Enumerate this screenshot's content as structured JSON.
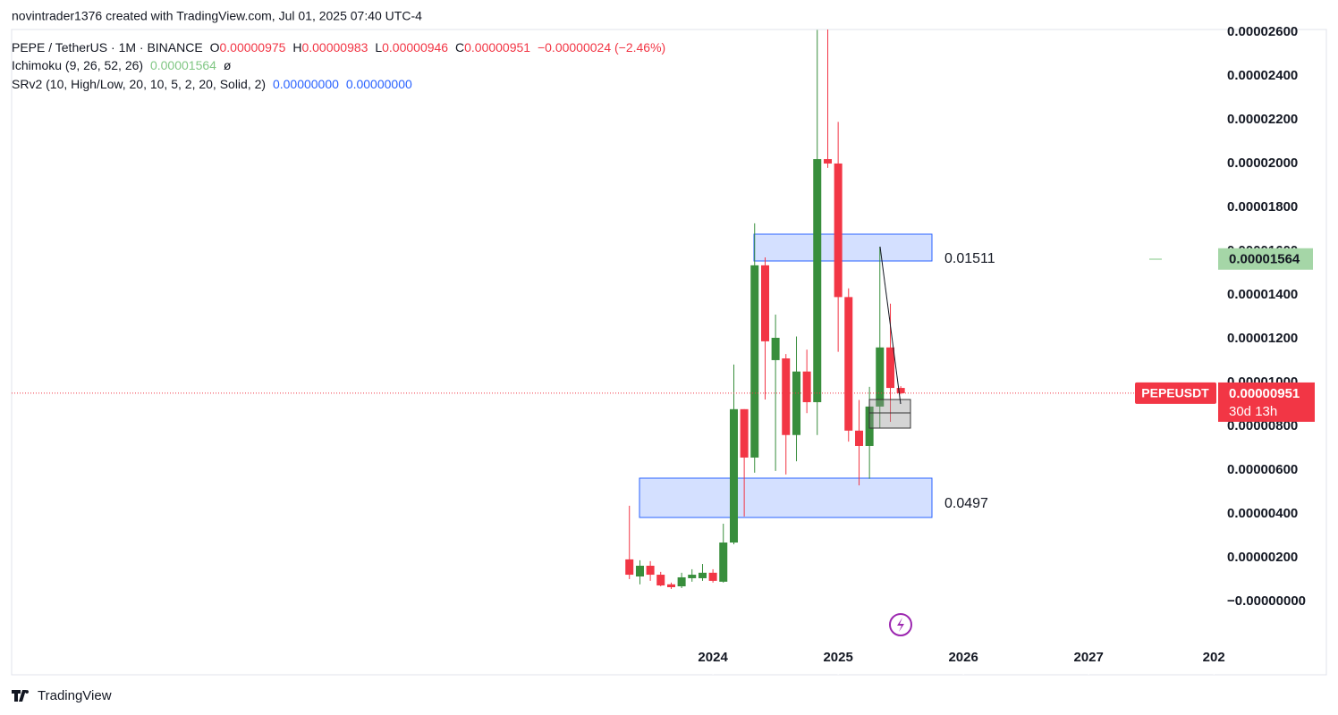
{
  "header": {
    "text": "novintrader1376 created with TradingView.com, Jul 01, 2025 07:40 UTC-4"
  },
  "legend": {
    "symbol": "PEPE / TetherUS · 1M · BINANCE",
    "ohlc": [
      {
        "key": "O",
        "value": "0.00000975"
      },
      {
        "key": "H",
        "value": "0.00000983"
      },
      {
        "key": "L",
        "value": "0.00000946"
      },
      {
        "key": "C",
        "value": "0.00000951"
      }
    ],
    "change": "−0.00000024 (−2.46%)",
    "indicators": [
      {
        "name": "Ichimoku (9, 26, 52, 26)",
        "values": [
          "0.00001564",
          "ø"
        ]
      },
      {
        "name": "SRv2 (10, High/Low, 20, 10, 5, 2, 20, Solid, 2)",
        "values": [
          "0.00000000",
          "0.00000000"
        ]
      }
    ]
  },
  "chart_data": {
    "type": "candlestick",
    "x": [
      2023.333,
      2023.417,
      2023.5,
      2023.583,
      2023.667,
      2023.75,
      2023.833,
      2023.917,
      2024,
      2024.083,
      2024.167,
      2024.25,
      2024.333,
      2024.417,
      2024.5,
      2024.583,
      2024.667,
      2024.75,
      2024.833,
      2024.917,
      2025,
      2025.083,
      2025.167,
      2025.25,
      2025.333,
      2025.417,
      2025.5
    ],
    "open": [
      1.92e-06,
      1.14e-06,
      1.63e-06,
      1.22e-06,
      7.8e-07,
      6.9e-07,
      1.06e-06,
      1.06e-06,
      1.31e-06,
      9e-07,
      2.69e-06,
      8.78e-06,
      6.57e-06,
      1.535e-05,
      1.102e-05,
      1.11e-05,
      7.6e-06,
      1.05e-05,
      9.1e-06,
      2.02e-05,
      2e-05,
      1.39e-05,
      7.8e-06,
      7.1e-06,
      8.9e-06,
      1.16e-05,
      9.75e-06
    ],
    "high": [
      4.37e-06,
      1.88e-06,
      1.84e-06,
      1.35e-06,
      8.6e-07,
      1.31e-06,
      1.47e-06,
      1.71e-06,
      1.47e-06,
      3.55e-06,
      1.082e-05,
      8.78e-06,
      1.727e-05,
      1.571e-05,
      1.31e-05,
      1.13e-05,
      1.21e-05,
      1.15e-05,
      2.61e-05,
      2.65e-05,
      2.19e-05,
      1.43e-05,
      9.2e-06,
      9.8e-06,
      1.62e-05,
      1.36e-05,
      9.83e-06
    ],
    "low": [
      1.02e-06,
      7.8e-07,
      9.4e-07,
      6.9e-07,
      5.7e-07,
      6.1e-07,
      9e-07,
      9.4e-07,
      8.6e-07,
      8.6e-07,
      2.61e-06,
      3.88e-06,
      5.88e-06,
      9.22e-06,
      5.96e-06,
      5.8e-06,
      6.4e-06,
      8.6e-06,
      7.6e-06,
      1.98e-05,
      1.14e-05,
      7.3e-06,
      5.3e-06,
      5.6e-06,
      7.9e-06,
      8.2e-06,
      9.46e-06
    ],
    "close": [
      1.22e-06,
      1.63e-06,
      1.22e-06,
      7.3e-07,
      6.5e-07,
      1.1e-06,
      1.22e-06,
      1.31e-06,
      9.4e-07,
      2.69e-06,
      8.78e-06,
      6.57e-06,
      1.535e-05,
      1.188e-05,
      1.204e-05,
      7.6e-06,
      1.05e-05,
      9.1e-06,
      2.02e-05,
      2e-05,
      1.39e-05,
      7.8e-06,
      7.1e-06,
      8.9e-06,
      1.16e-05,
      9.75e-06,
      9.51e-06
    ],
    "up_color": "#388e3c",
    "down_color": "#f23645",
    "xlim": [
      2018.4,
      2028.02
    ],
    "xticks": [
      2024,
      2025,
      2026,
      2027,
      {
        "value": 2028,
        "label": "202"
      }
    ],
    "ylim": [
      -3.35e-06,
      2.612e-05
    ],
    "yticks": [
      {
        "value": 0,
        "label": "−0.00000000"
      },
      {
        "value": 2e-06,
        "label": "0.00000200"
      },
      {
        "value": 4e-06,
        "label": "0.00000400"
      },
      {
        "value": 6e-06,
        "label": "0.00000600"
      },
      {
        "value": 8e-06,
        "label": "0.00000800"
      },
      {
        "value": 1e-05,
        "label": "0.00001000"
      },
      {
        "value": 1.2e-05,
        "label": "0.00001200"
      },
      {
        "value": 1.4e-05,
        "label": "0.00001400"
      },
      {
        "value": 1.6e-05,
        "label": "0.00001600"
      },
      {
        "value": 1.8e-05,
        "label": "0.00001800"
      },
      {
        "value": 2e-05,
        "label": "0.00002000"
      },
      {
        "value": 2.2e-05,
        "label": "0.00002200"
      },
      {
        "value": 2.4e-05,
        "label": "0.00002400"
      },
      {
        "value": 2.6e-05,
        "label": "0.00002600"
      }
    ],
    "annotations": [
      "0.01511",
      "0.0497"
    ],
    "price_tag": {
      "symbol": "PEPEUSDT",
      "price": "0.00000951",
      "countdown": "30d 13h"
    },
    "ichimoku_tag": "0.00001564"
  },
  "footer": {
    "brand": "TradingView"
  }
}
